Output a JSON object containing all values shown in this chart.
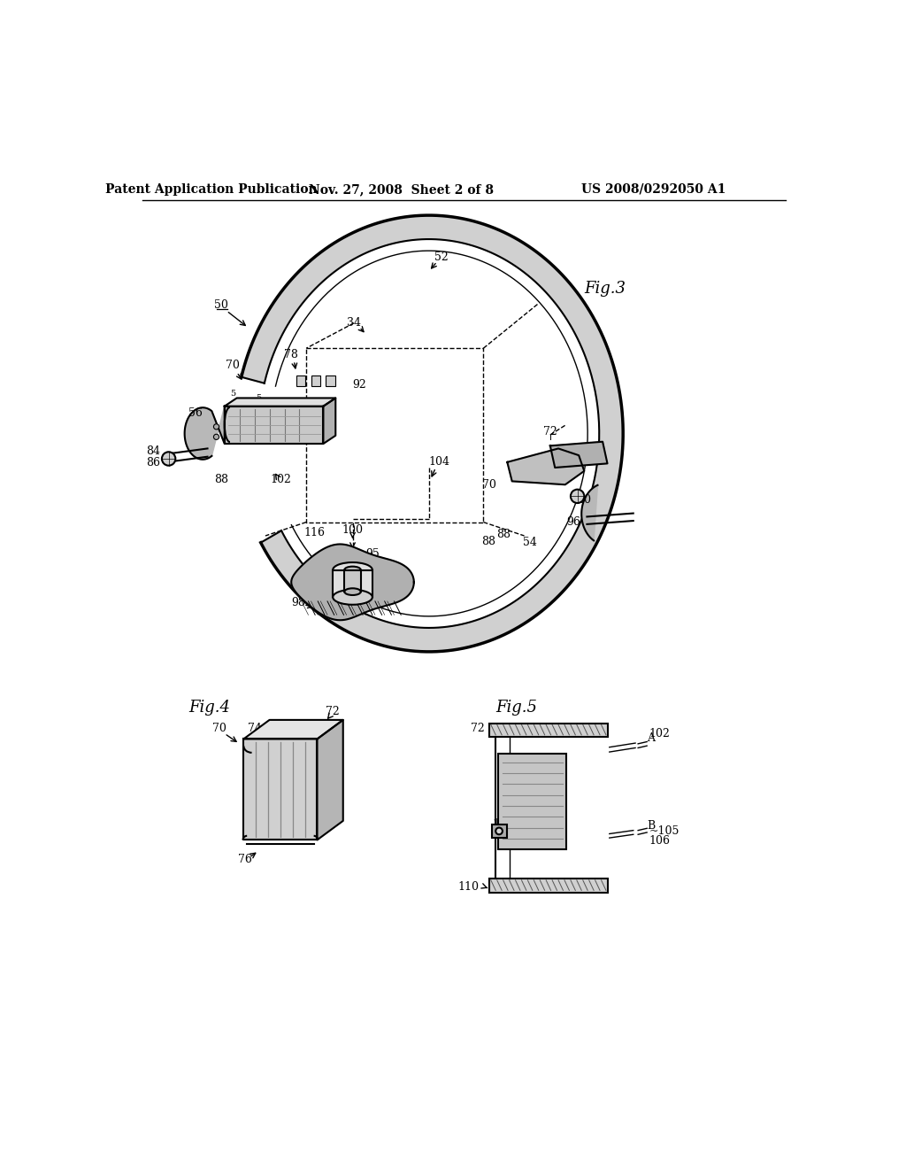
{
  "bg_color": "#ffffff",
  "line_color": "#000000",
  "header_text": "Patent Application Publication",
  "header_date": "Nov. 27, 2008  Sheet 2 of 8",
  "header_patent": "US 2008/0292050 A1",
  "fig3_label": "Fig.3",
  "fig4_label": "Fig.4",
  "fig5_label": "Fig.5"
}
